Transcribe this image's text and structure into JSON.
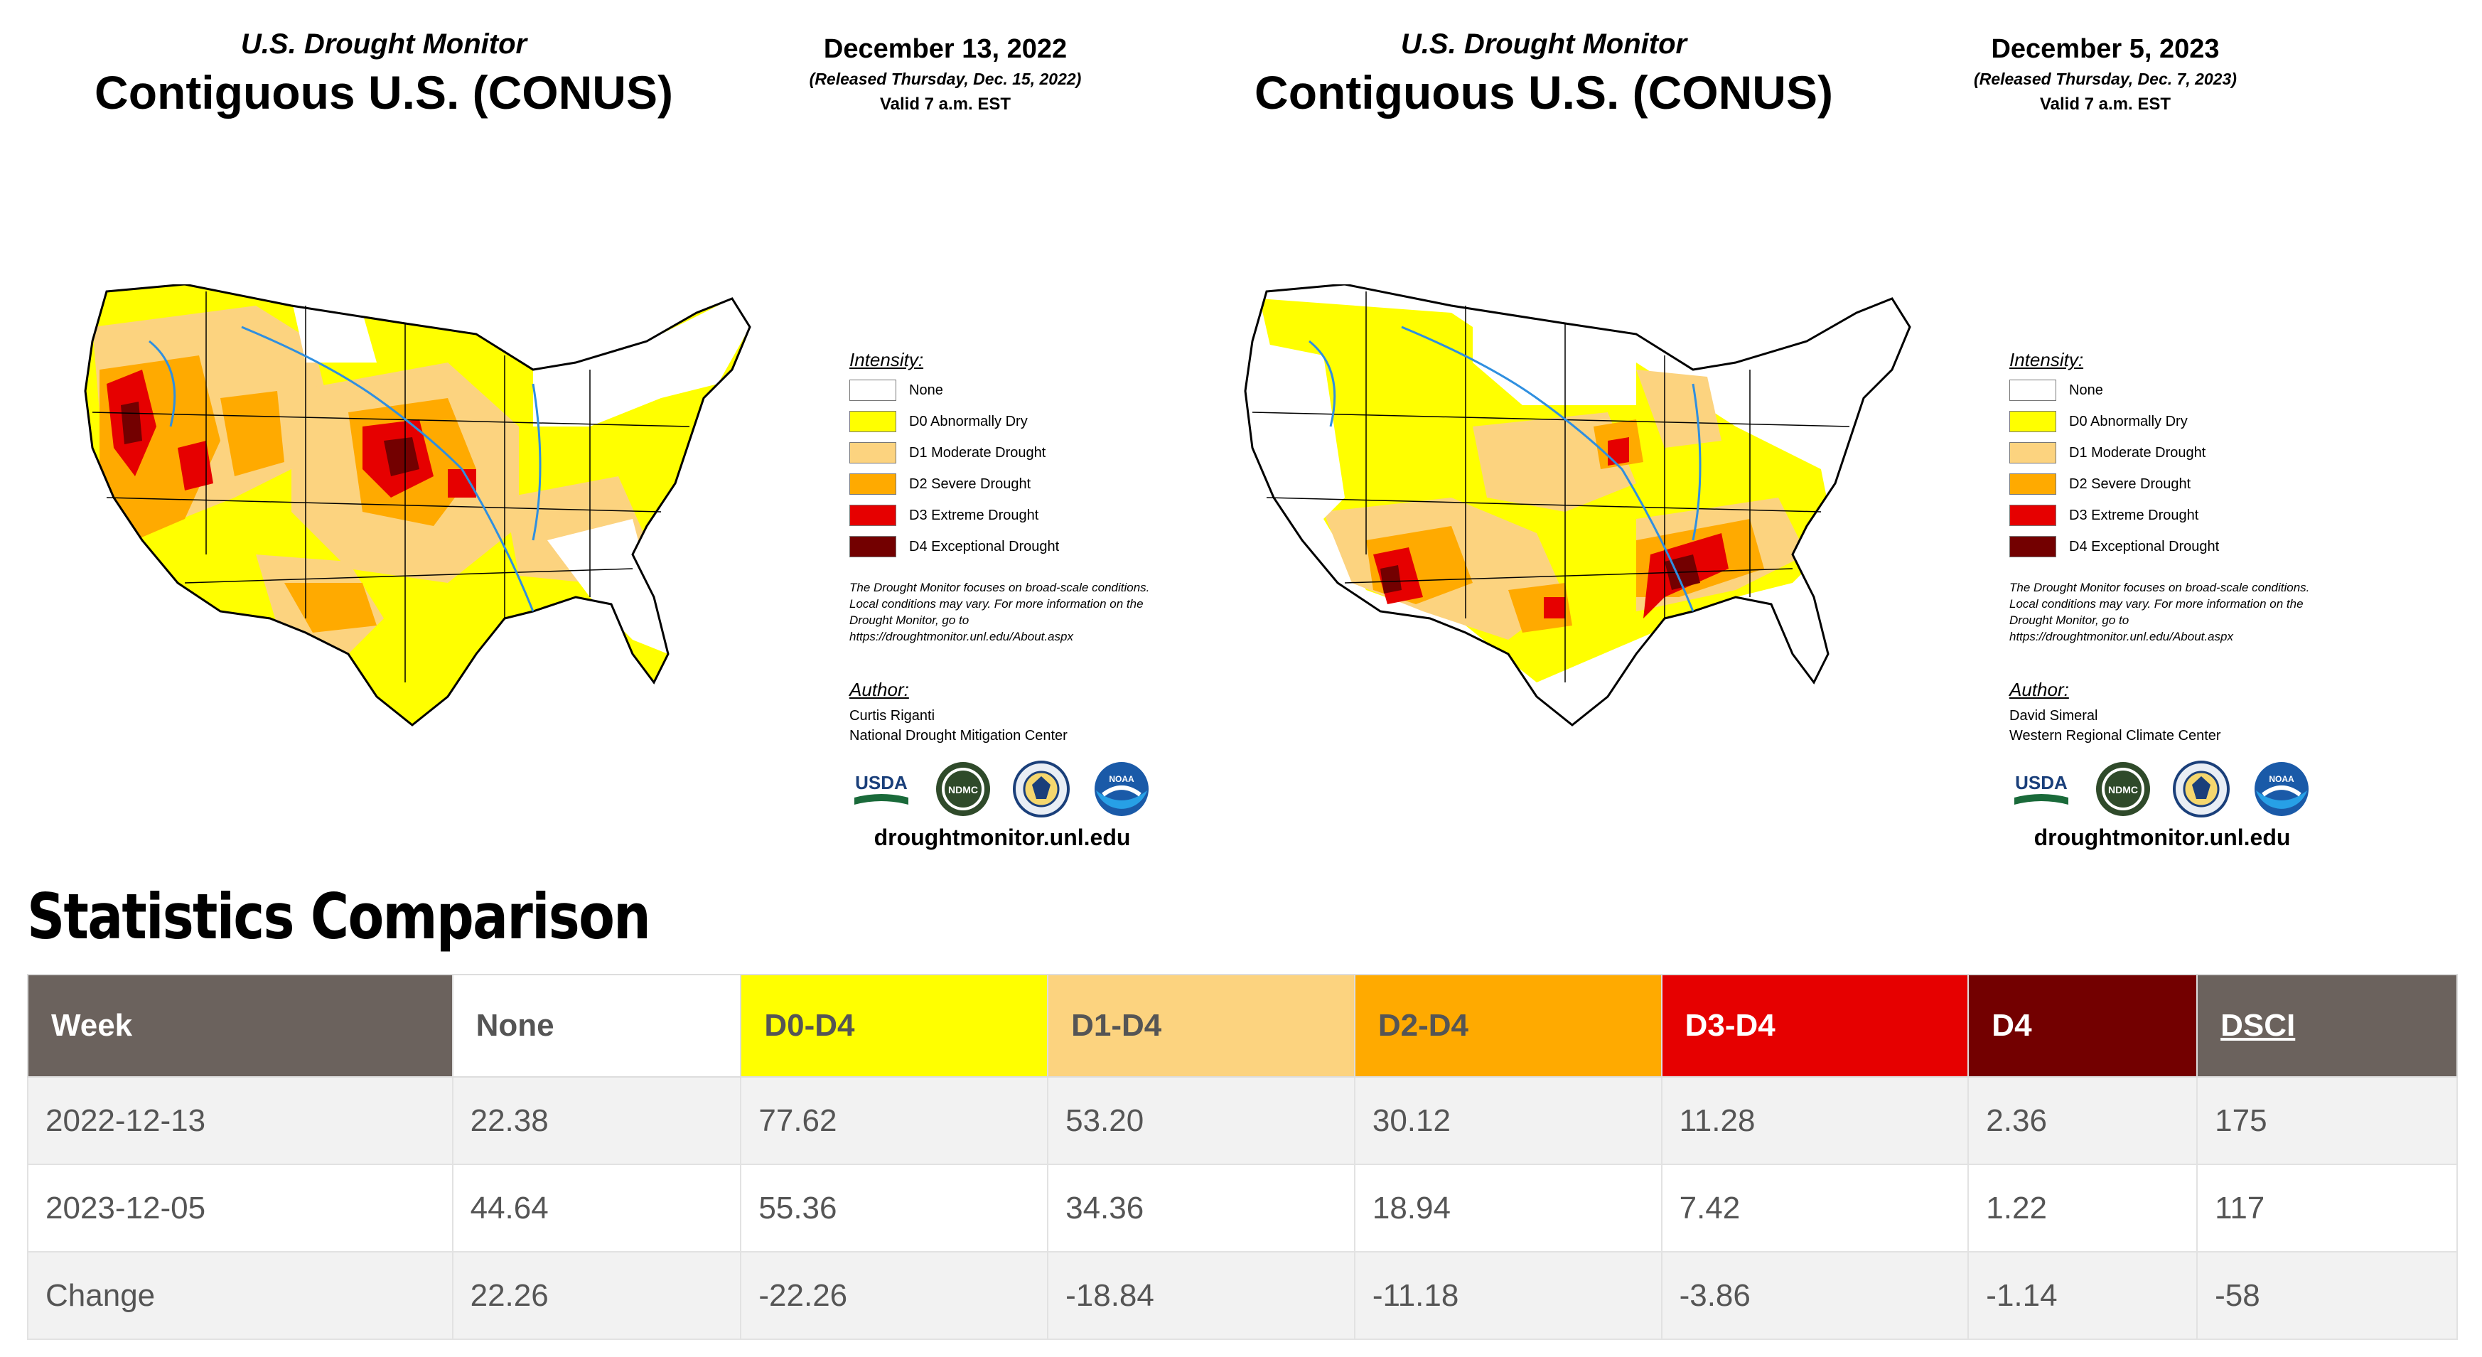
{
  "panels": [
    {
      "header_line1": "U.S. Drought Monitor",
      "title": "Contiguous U.S. (CONUS)",
      "date": "December 13, 2022",
      "released": "(Released Thursday, Dec. 15, 2022)",
      "valid": "Valid 7 a.m. EST",
      "author_name": "Curtis Riganti",
      "author_org": "National Drought Mitigation Center"
    },
    {
      "header_line1": "U.S. Drought Monitor",
      "title": "Contiguous U.S. (CONUS)",
      "date": "December 5, 2023",
      "released": "(Released Thursday, Dec. 7, 2023)",
      "valid": "Valid 7 a.m. EST",
      "author_name": "David Simeral",
      "author_org": "Western Regional Climate Center"
    }
  ],
  "legend": {
    "title": "Intensity:",
    "items": [
      {
        "label": "None",
        "color": "#ffffff"
      },
      {
        "label": "D0 Abnormally Dry",
        "color": "#ffff00"
      },
      {
        "label": "D1 Moderate Drought",
        "color": "#fcd37f"
      },
      {
        "label": "D2 Severe Drought",
        "color": "#ffaa00"
      },
      {
        "label": "D3 Extreme Drought",
        "color": "#e60000"
      },
      {
        "label": "D4 Exceptional Drought",
        "color": "#730000"
      }
    ]
  },
  "disclaimer": "The Drought Monitor focuses on broad-scale conditions. Local conditions may vary. For more information on the Drought Monitor, go to https://droughtmonitor.unl.edu/About.aspx",
  "author_title": "Author:",
  "logos": {
    "usda": "USDA",
    "ndmc": "NDMC",
    "noaa": "NOAA"
  },
  "website": "droughtmonitor.unl.edu",
  "stats": {
    "heading": "Statistics Comparison",
    "columns": [
      {
        "label": "Week",
        "bg": "#6b625d",
        "fg": "#ffffff"
      },
      {
        "label": "None",
        "bg": "#ffffff",
        "fg": "#555555"
      },
      {
        "label": "D0-D4",
        "bg": "#ffff00",
        "fg": "#555555"
      },
      {
        "label": "D1-D4",
        "bg": "#fcd37f",
        "fg": "#555555"
      },
      {
        "label": "D2-D4",
        "bg": "#ffaa00",
        "fg": "#555555"
      },
      {
        "label": "D3-D4",
        "bg": "#e60000",
        "fg": "#ffffff"
      },
      {
        "label": "D4",
        "bg": "#730000",
        "fg": "#ffffff"
      },
      {
        "label": "DSCI",
        "bg": "#6b625d",
        "fg": "#ffffff"
      }
    ],
    "rows": [
      [
        "2022-12-13",
        "22.38",
        "77.62",
        "53.20",
        "30.12",
        "11.28",
        "2.36",
        "175"
      ],
      [
        "2023-12-05",
        "44.64",
        "55.36",
        "34.36",
        "18.94",
        "7.42",
        "1.22",
        "117"
      ],
      [
        "Change",
        "22.26",
        "-22.26",
        "-18.84",
        "-11.18",
        "-3.86",
        "-1.14",
        "-58"
      ]
    ]
  }
}
